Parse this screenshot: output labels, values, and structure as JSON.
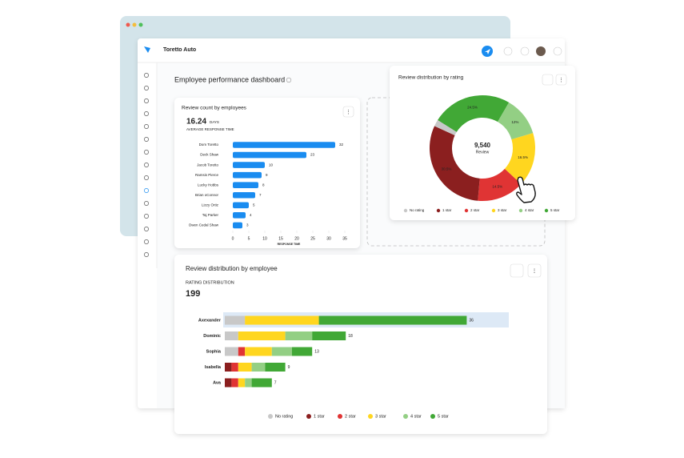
{
  "app": {
    "name": "Toretto Auto"
  },
  "page_title": "Employee performance dashboard",
  "chart_data": [
    {
      "type": "bar",
      "orientation": "horizontal",
      "title": "Review count by employees",
      "kpi_value": 16.24,
      "kpi_unit": "DAYS",
      "kpi_label": "AVERAGE RESPONSE TIME",
      "categories": [
        "Dom Toretto",
        "Deck Shaw",
        "Jacob Toretto",
        "Ramsis Pierce",
        "Lucky Hobbs",
        "Brian oConnor",
        "Lizzy Ortiz",
        "Taj Parker",
        "Owen Cedal Shaw"
      ],
      "values": [
        32,
        23,
        10,
        9,
        8,
        7,
        5,
        4,
        3
      ],
      "color": "#1a8cf0",
      "xlim": [
        0,
        35
      ],
      "xticks": [
        0,
        5,
        10,
        15,
        20,
        25,
        30,
        35
      ],
      "xlabel": "RESPONSE TIME"
    },
    {
      "type": "donut",
      "title": "Review distribution by rating",
      "center_value": "9,540",
      "center_label": "Review",
      "categories": [
        "No rating",
        "1 star",
        "2 star",
        "3 star",
        "4 star",
        "5 star"
      ],
      "colors": [
        "#c8c8c8",
        "#8b1f1f",
        "#e03434",
        "#ffd61f",
        "#93cf84",
        "#41a836"
      ],
      "values": [
        2,
        30.5,
        14.5,
        16.5,
        12,
        24.5
      ],
      "value_labels": [
        null,
        "30.5%",
        "14.5%",
        "16.5%",
        "12%",
        "24.5%"
      ]
    },
    {
      "type": "stacked_bar",
      "orientation": "horizontal",
      "title": "Review distribution by employee",
      "kpi_label": "RATING DISTRIBUTION",
      "kpi_value": 199,
      "categories": [
        "Axexander",
        "Dominic",
        "Sophia",
        "Isabella",
        "Ava"
      ],
      "totals": [
        36,
        18,
        13,
        9,
        7
      ],
      "series": [
        {
          "name": "No rating",
          "color": "#c8c8c8",
          "values": [
            3,
            2,
            2,
            0,
            0
          ]
        },
        {
          "name": "1 star",
          "color": "#8b1f1f",
          "values": [
            0,
            0,
            0,
            1,
            1
          ]
        },
        {
          "name": "2 star",
          "color": "#e03434",
          "values": [
            0,
            0,
            1,
            1,
            1
          ]
        },
        {
          "name": "3 star",
          "color": "#ffd61f",
          "values": [
            11,
            7,
            4,
            2,
            1
          ]
        },
        {
          "name": "4 star",
          "color": "#93cf84",
          "values": [
            0,
            4,
            3,
            2,
            1
          ]
        },
        {
          "name": "5 star",
          "color": "#41a836",
          "values": [
            22,
            5,
            3,
            3,
            3
          ]
        }
      ]
    }
  ]
}
